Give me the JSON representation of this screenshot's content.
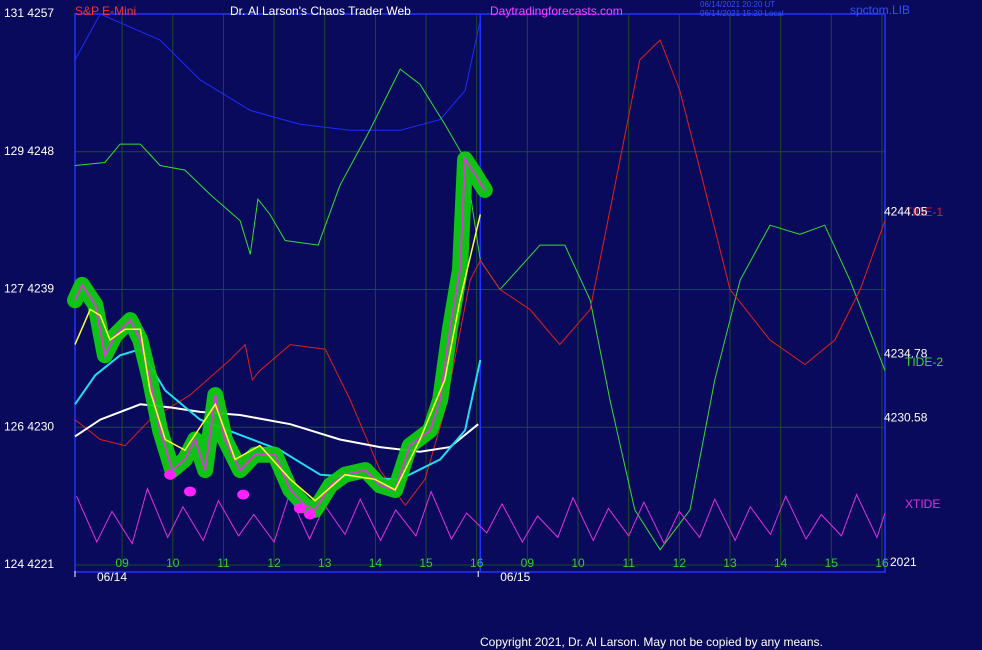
{
  "chart_data": {
    "type": "line",
    "instrument": "S&P E-Mini",
    "title": "Dr. Al Larson's Chaos Trader Web",
    "website": "Daytradingforecasts.com",
    "timestamp_ut": "06/14/2021 20:20 UT",
    "timestamp_local": "06/14/2021 15:20 Local",
    "library": "spctom.LIB",
    "copyright": "Copyright 2021, Dr. Al Larson. May not be copied by any means.",
    "year": "2021",
    "grid": true,
    "xlim": [
      0.07,
      16.06
    ],
    "ylim": [
      4221,
      4257
    ],
    "yticks": [
      {
        "value": 4257,
        "label": "131 4257"
      },
      {
        "value": 4248,
        "label": "129 4248"
      },
      {
        "value": 4239,
        "label": "127 4239"
      },
      {
        "value": 4230,
        "label": "126 4230"
      },
      {
        "value": 4221,
        "label": "124 4221"
      }
    ],
    "xticks": [
      {
        "value": 1,
        "label": "09"
      },
      {
        "value": 2,
        "label": "10"
      },
      {
        "value": 3,
        "label": "11"
      },
      {
        "value": 4,
        "label": "12"
      },
      {
        "value": 5,
        "label": "13"
      },
      {
        "value": 6,
        "label": "14"
      },
      {
        "value": 7,
        "label": "15"
      },
      {
        "value": 8,
        "label": "16"
      },
      {
        "value": 9,
        "label": "09"
      },
      {
        "value": 10,
        "label": "10"
      },
      {
        "value": 11,
        "label": "11"
      },
      {
        "value": 12,
        "label": "12"
      },
      {
        "value": 13,
        "label": "13"
      },
      {
        "value": 14,
        "label": "14"
      },
      {
        "value": 15,
        "label": "15"
      },
      {
        "value": 16,
        "label": "16"
      }
    ],
    "date_ticks": [
      {
        "value": 0.07,
        "label": "06/14"
      },
      {
        "value": 8.03,
        "label": "06/15"
      }
    ],
    "day_break": 8.07,
    "price_labels": [
      4244.05,
      4234.78,
      4230.58
    ],
    "series": [
      {
        "color": "#1a2cff",
        "width": 1,
        "style": "line",
        "x": [
          0.07,
          0.57,
          1.75,
          2.54,
          3.53,
          4.51,
          5.5,
          6.49,
          7.28,
          7.77,
          8.07
        ],
        "values": [
          4254.0,
          4257.0,
          4255.3,
          4252.7,
          4250.7,
          4249.8,
          4249.4,
          4249.4,
          4250.1,
          4252.0,
          4256.6
        ]
      },
      {
        "name": "TIDE-2",
        "color": "#33dd33",
        "width": 1,
        "style": "line",
        "x": [
          0.07,
          0.66,
          0.96,
          1.36,
          1.75,
          2.24,
          2.74,
          3.33,
          3.53,
          3.68,
          3.92,
          4.22,
          4.87,
          5.3,
          5.89,
          6.49,
          6.88,
          7.37,
          7.77,
          8.07,
          8.46,
          9.25,
          9.74,
          10.24,
          10.63,
          11.12,
          11.62,
          12.21,
          12.7,
          13.2,
          13.79,
          14.38,
          14.87,
          15.37,
          16.06
        ],
        "values": [
          4247.1,
          4247.3,
          4248.5,
          4248.5,
          4247.1,
          4246.8,
          4245.2,
          4243.5,
          4241.3,
          4244.9,
          4243.9,
          4242.2,
          4241.9,
          4245.8,
          4249.4,
          4253.4,
          4252.4,
          4249.8,
          4247.5,
          4240.9,
          4239.0,
          4241.9,
          4241.9,
          4238.3,
          4231.8,
          4224.6,
          4222.0,
          4224.6,
          4233.1,
          4239.6,
          4243.2,
          4242.6,
          4243.2,
          4239.6,
          4233.7
        ]
      },
      {
        "name": "TIDE-1",
        "color": "#e0201a",
        "width": 1,
        "style": "line",
        "x": [
          0.07,
          0.57,
          1.06,
          1.55,
          2.34,
          3.13,
          3.43,
          3.57,
          3.72,
          4.32,
          5.01,
          5.5,
          6.09,
          6.59,
          6.98,
          7.37,
          7.87,
          8.07,
          8.46,
          9.05,
          9.64,
          10.24,
          10.83,
          11.22,
          11.62,
          12.01,
          12.41,
          13.0,
          13.79,
          14.48,
          15.07,
          15.57,
          16.06
        ],
        "values": [
          4230.5,
          4229.2,
          4228.8,
          4230.5,
          4232.1,
          4234.4,
          4235.4,
          4233.1,
          4233.7,
          4235.4,
          4235.1,
          4231.8,
          4227.2,
          4224.9,
          4226.6,
          4231.1,
          4239.6,
          4240.9,
          4239.0,
          4237.7,
          4235.4,
          4237.7,
          4247.5,
          4254.0,
          4255.3,
          4252.0,
          4246.8,
          4239.0,
          4235.7,
          4234.1,
          4235.7,
          4239.0,
          4243.5
        ]
      },
      {
        "name": "XTIDE",
        "color": "#e030e0",
        "width": 1,
        "style": "line",
        "x": [
          0.1,
          0.5,
          0.8,
          1.2,
          1.5,
          1.9,
          2.2,
          2.6,
          2.9,
          3.3,
          3.6,
          4.0,
          4.3,
          4.7,
          5.0,
          5.4,
          5.7,
          6.1,
          6.4,
          6.8,
          7.1,
          7.5,
          7.8,
          8.2,
          8.5,
          8.9,
          9.2,
          9.6,
          9.9,
          10.3,
          10.6,
          11.0,
          11.3,
          11.7,
          12.0,
          12.4,
          12.7,
          13.1,
          13.4,
          13.8,
          14.1,
          14.5,
          14.8,
          15.2,
          15.5,
          15.9,
          16.06
        ],
        "values": [
          4225.5,
          4222.5,
          4224.5,
          4222.4,
          4226.0,
          4222.8,
          4224.8,
          4222.6,
          4225.2,
          4222.9,
          4224.3,
          4222.5,
          4225.6,
          4222.7,
          4224.9,
          4223.0,
          4225.3,
          4222.6,
          4224.6,
          4222.9,
          4225.8,
          4222.7,
          4224.4,
          4223.1,
          4225.0,
          4222.5,
          4224.2,
          4222.8,
          4225.4,
          4222.6,
          4224.7,
          4222.9,
          4225.1,
          4222.4,
          4224.5,
          4222.8,
          4225.3,
          4222.6,
          4224.8,
          4223.0,
          4225.5,
          4222.7,
          4224.3,
          4222.9,
          4225.6,
          4222.8,
          4224.4
        ]
      },
      {
        "color": "#ffffff",
        "width": 2,
        "style": "line",
        "x": [
          0.07,
          0.57,
          1.36,
          1.95,
          2.54,
          3.33,
          4.32,
          5.3,
          6.09,
          6.88,
          7.47,
          8.03
        ],
        "values": [
          4229.4,
          4230.5,
          4231.5,
          4231.3,
          4231.0,
          4230.8,
          4230.2,
          4229.2,
          4228.7,
          4228.4,
          4228.7,
          4230.2
        ]
      },
      {
        "color": "#22ddee",
        "width": 2,
        "style": "line",
        "x": [
          0.07,
          0.47,
          0.96,
          1.36,
          1.85,
          2.54,
          3.33,
          4.12,
          4.91,
          5.7,
          6.49,
          7.28,
          7.77,
          8.07
        ],
        "values": [
          4231.5,
          4233.4,
          4234.7,
          4235.1,
          4232.4,
          4230.5,
          4229.5,
          4228.5,
          4226.9,
          4226.7,
          4226.6,
          4227.9,
          4229.8,
          4234.4
        ]
      },
      {
        "color": "#d040d0",
        "width": 2,
        "style": "line",
        "halo": "#11cc11",
        "x": [
          0.07,
          0.21,
          0.47,
          0.66,
          0.86,
          1.16,
          1.36,
          1.55,
          1.75,
          1.99,
          2.24,
          2.44,
          2.64,
          2.84,
          3.03,
          3.33,
          3.62,
          4.02,
          4.32,
          4.61,
          4.81,
          5.11,
          5.4,
          5.8,
          6.09,
          6.39,
          6.68,
          7.08,
          7.28,
          7.47,
          7.67,
          7.77,
          7.97,
          8.16
        ],
        "values": [
          4238.3,
          4239.3,
          4238.0,
          4234.7,
          4236.0,
          4237.0,
          4235.7,
          4233.1,
          4229.8,
          4227.2,
          4227.9,
          4229.2,
          4227.2,
          4232.1,
          4229.2,
          4227.2,
          4228.2,
          4228.2,
          4225.9,
          4224.9,
          4224.6,
          4226.2,
          4226.9,
          4227.2,
          4226.2,
          4225.9,
          4228.8,
          4229.8,
          4231.8,
          4236.4,
          4240.3,
          4247.5,
          4246.5,
          4245.5
        ]
      },
      {
        "color": "#ffff33",
        "width": 1.5,
        "style": "line",
        "x": [
          0.07,
          0.37,
          0.57,
          0.76,
          1.06,
          1.36,
          1.55,
          1.85,
          2.24,
          2.84,
          3.23,
          3.72,
          4.32,
          4.81,
          5.4,
          5.99,
          6.39,
          6.88,
          7.37,
          7.67,
          8.07
        ],
        "values": [
          4235.4,
          4237.7,
          4237.3,
          4235.7,
          4236.4,
          4236.4,
          4232.4,
          4229.2,
          4228.5,
          4231.5,
          4227.9,
          4228.8,
          4226.6,
          4225.2,
          4226.9,
          4226.6,
          4225.9,
          4229.2,
          4233.1,
          4238.3,
          4243.9
        ]
      },
      {
        "color": "#ff22ff",
        "style": "dots",
        "x": [
          1.95,
          2.34,
          3.39,
          4.51,
          4.71
        ],
        "values": [
          4226.9,
          4225.8,
          4225.6,
          4224.7,
          4224.3
        ]
      }
    ]
  }
}
